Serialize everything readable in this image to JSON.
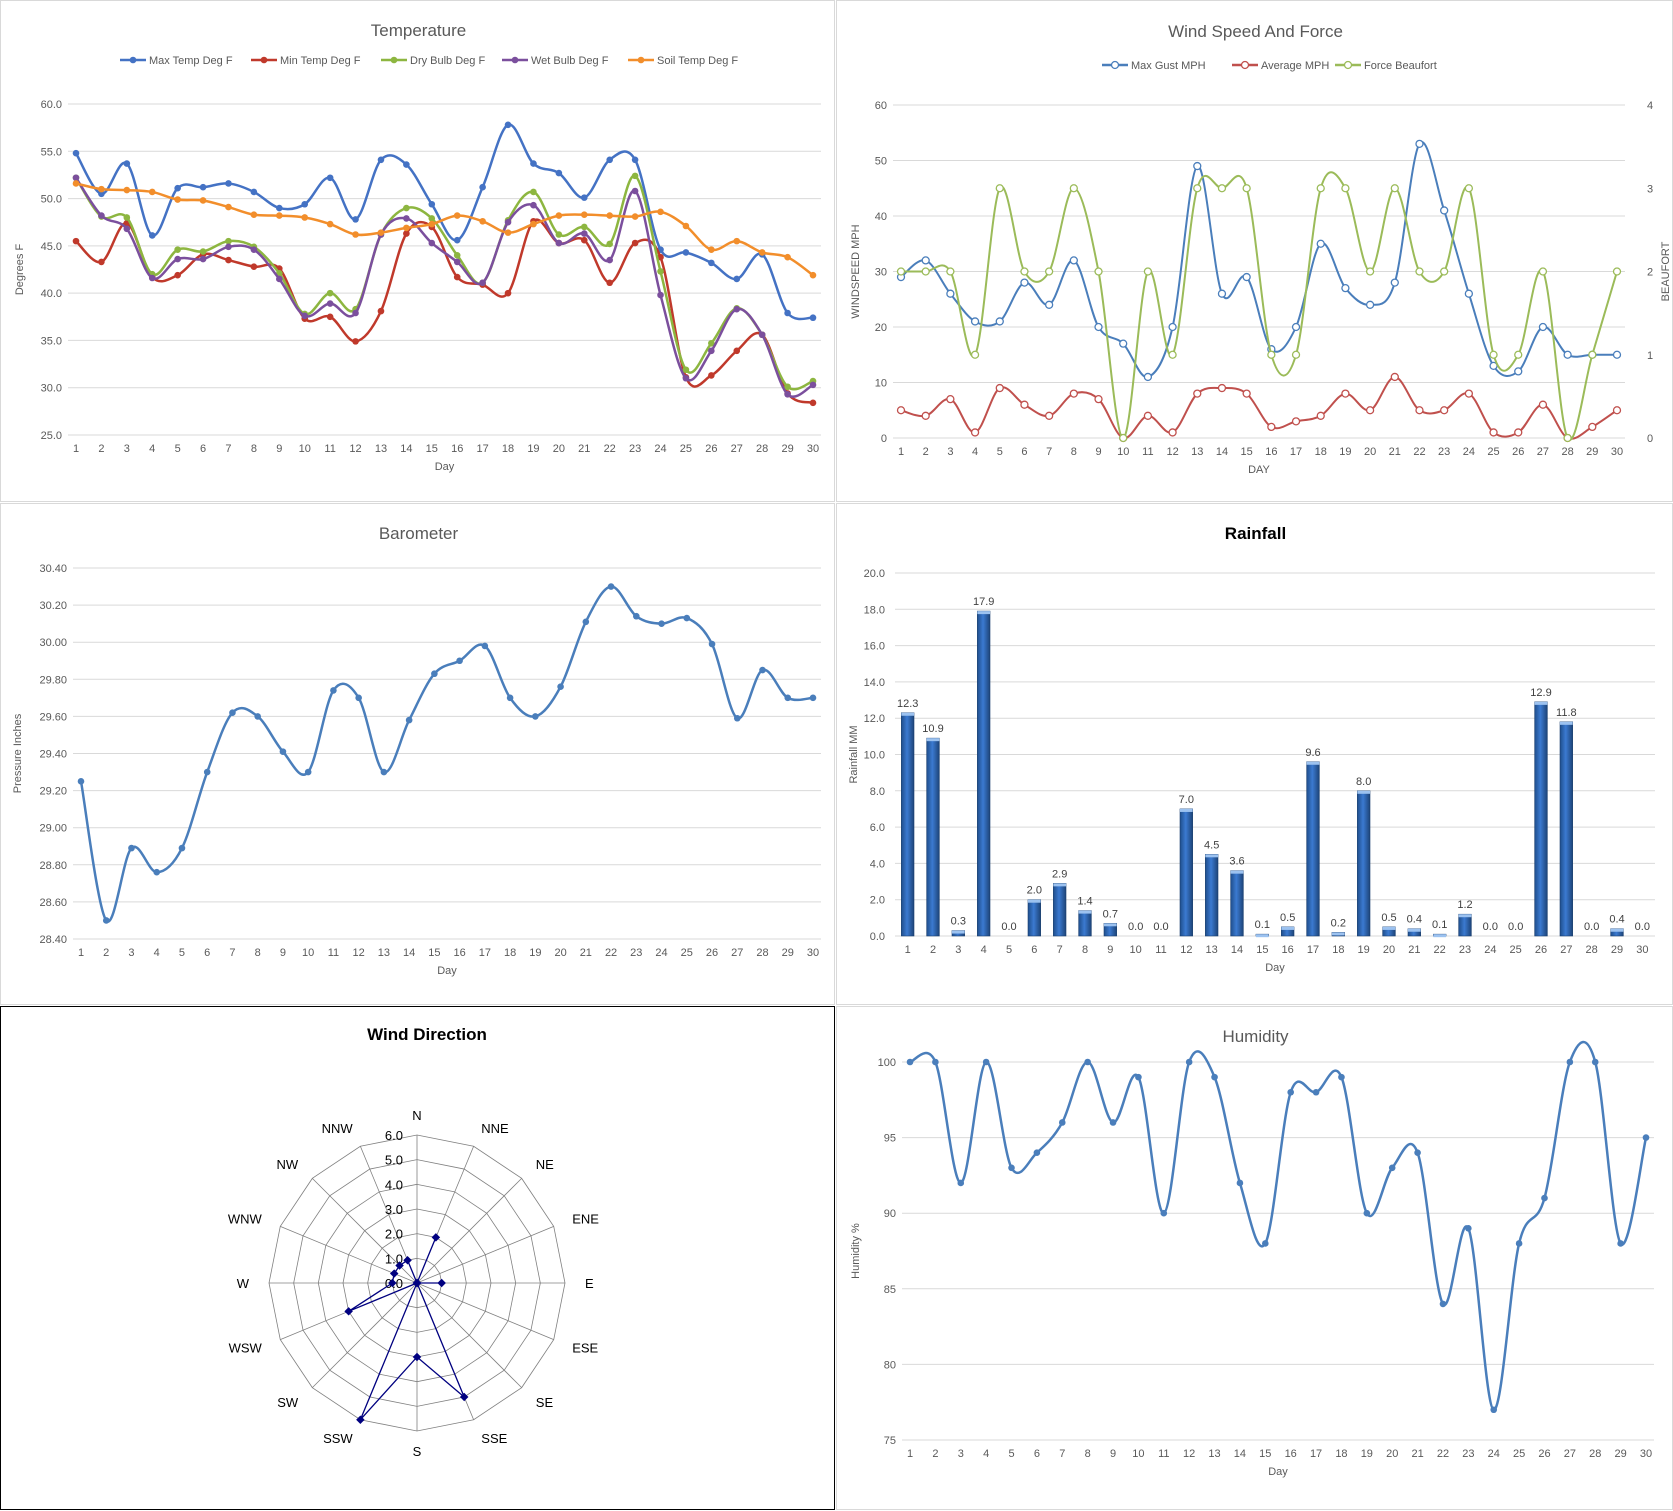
{
  "chart_data": [
    {
      "id": "temp",
      "type": "line",
      "title": "Temperature",
      "xlabel": "Day",
      "ylabel": "Degrees F",
      "x": [
        1,
        2,
        3,
        4,
        5,
        6,
        7,
        8,
        9,
        10,
        11,
        12,
        13,
        14,
        15,
        16,
        17,
        18,
        19,
        20,
        21,
        22,
        23,
        24,
        25,
        26,
        27,
        28,
        29,
        30
      ],
      "ylim": [
        25,
        60
      ],
      "yticks": [
        "25.0",
        "30.0",
        "35.0",
        "40.0",
        "45.0",
        "50.0",
        "55.0",
        "60.0"
      ],
      "ystep": 5,
      "series": [
        {
          "name": "Max Temp Deg F",
          "color": "#4472c4",
          "values": [
            54.8,
            50.5,
            53.7,
            46.1,
            51.1,
            51.2,
            51.6,
            50.7,
            49.0,
            49.4,
            52.2,
            47.8,
            54.1,
            53.6,
            49.4,
            45.6,
            51.2,
            57.8,
            53.7,
            52.7,
            50.1,
            54.1,
            54.1,
            44.6,
            44.3,
            43.2,
            41.5,
            44.1,
            37.9,
            37.4
          ]
        },
        {
          "name": "Min Temp Deg F",
          "color": "#c0392b",
          "values": [
            45.5,
            43.3,
            47.4,
            41.7,
            41.9,
            44.1,
            43.5,
            42.8,
            42.6,
            37.3,
            37.5,
            34.9,
            38.1,
            46.3,
            47.0,
            41.7,
            40.9,
            40.0,
            47.6,
            45.3,
            45.6,
            41.1,
            45.3,
            43.8,
            31.1,
            31.3,
            33.9,
            35.6,
            29.4,
            28.4
          ]
        },
        {
          "name": "Dry Bulb Deg F",
          "color": "#8db640",
          "values": [
            52.2,
            48.1,
            48.0,
            42.0,
            44.6,
            44.4,
            45.5,
            44.9,
            42.1,
            37.8,
            40.0,
            38.3,
            46.2,
            49.0,
            47.9,
            44.0,
            41.1,
            47.7,
            50.7,
            46.2,
            47.0,
            45.2,
            52.4,
            42.3,
            31.9,
            34.7,
            38.4,
            35.6,
            30.1,
            30.7
          ]
        },
        {
          "name": "Wet Bulb Deg F",
          "color": "#7b4f9d",
          "values": [
            52.2,
            48.2,
            46.8,
            41.6,
            43.6,
            43.6,
            44.9,
            44.6,
            41.5,
            37.6,
            38.9,
            37.9,
            46.2,
            47.9,
            45.3,
            43.3,
            41.1,
            47.5,
            49.3,
            45.3,
            46.3,
            43.5,
            50.8,
            39.8,
            31.0,
            33.9,
            38.3,
            35.6,
            29.3,
            30.3
          ]
        },
        {
          "name": "Soil Temp Deg F",
          "color": "#f28e2b",
          "values": [
            51.6,
            51.0,
            50.9,
            50.7,
            49.9,
            49.8,
            49.1,
            48.3,
            48.2,
            48.0,
            47.3,
            46.2,
            46.4,
            46.9,
            47.3,
            48.2,
            47.6,
            46.4,
            47.3,
            48.2,
            48.3,
            48.2,
            48.1,
            48.6,
            47.1,
            44.6,
            45.5,
            44.3,
            43.8,
            41.9
          ]
        }
      ]
    },
    {
      "id": "wind",
      "type": "line",
      "title": "Wind Speed And Force",
      "xlabel": "DAY",
      "ylabel": "WINDSPEED MPH",
      "ylabel_right": "BEAUFORT",
      "x": [
        1,
        2,
        3,
        4,
        5,
        6,
        7,
        8,
        9,
        10,
        11,
        12,
        13,
        14,
        15,
        16,
        17,
        18,
        19,
        20,
        21,
        22,
        23,
        24,
        25,
        26,
        27,
        28,
        29,
        30
      ],
      "ylim": [
        0,
        60
      ],
      "yticks": [
        "0",
        "10",
        "20",
        "30",
        "40",
        "50",
        "60"
      ],
      "ylim_right": [
        0,
        4
      ],
      "yticks_right": [
        "0",
        "1",
        "2",
        "3",
        "4"
      ],
      "series": [
        {
          "name": "Max Gust MPH",
          "color": "#4a7ebb",
          "axis": "left",
          "values": [
            29,
            32,
            26,
            21,
            21,
            28,
            24,
            32,
            20,
            17,
            11,
            20,
            49,
            26,
            29,
            16,
            20,
            35,
            27,
            24,
            28,
            53,
            41,
            26,
            13,
            12,
            20,
            15,
            15,
            15
          ]
        },
        {
          "name": "Average MPH",
          "color": "#c0504d",
          "axis": "left",
          "values": [
            5,
            4,
            7,
            1,
            9,
            6,
            4,
            8,
            7,
            0,
            4,
            1,
            8,
            9,
            8,
            2,
            3,
            4,
            8,
            5,
            11,
            5,
            5,
            8,
            1,
            1,
            6,
            0,
            2,
            5
          ]
        },
        {
          "name": "Force Beaufort",
          "color": "#9bbb59",
          "axis": "right",
          "values": [
            2,
            2,
            2,
            1,
            3,
            2,
            2,
            3,
            2,
            0,
            2,
            1,
            3,
            3,
            3,
            1,
            1,
            3,
            3,
            2,
            3,
            2,
            2,
            3,
            1,
            1,
            2,
            0,
            1,
            2
          ]
        }
      ]
    },
    {
      "id": "baro",
      "type": "line",
      "title": "Barometer",
      "xlabel": "Day",
      "ylabel": "Pressure Inches",
      "x": [
        1,
        2,
        3,
        4,
        5,
        6,
        7,
        8,
        9,
        10,
        11,
        12,
        13,
        14,
        15,
        16,
        17,
        18,
        19,
        20,
        21,
        22,
        23,
        24,
        25,
        26,
        27,
        28,
        29,
        30
      ],
      "ylim": [
        28.4,
        30.4
      ],
      "yticks": [
        "28.40",
        "28.60",
        "28.80",
        "29.00",
        "29.20",
        "29.40",
        "29.60",
        "29.80",
        "30.00",
        "30.20",
        "30.40"
      ],
      "series": [
        {
          "name": "",
          "color": "#4a7ebb",
          "values": [
            29.25,
            28.5,
            28.89,
            28.76,
            28.89,
            29.3,
            29.62,
            29.6,
            29.41,
            29.3,
            29.74,
            29.7,
            29.3,
            29.58,
            29.83,
            29.9,
            29.98,
            29.7,
            29.6,
            29.76,
            30.11,
            30.3,
            30.14,
            30.1,
            30.13,
            29.99,
            29.59,
            29.85,
            29.7,
            29.7
          ]
        }
      ]
    },
    {
      "id": "rain",
      "type": "bar",
      "title": "Rainfall",
      "xlabel": "Day",
      "ylabel": "Rainfall MM",
      "categories": [
        "1",
        "2",
        "3",
        "4",
        "5",
        "6",
        "7",
        "8",
        "9",
        "10",
        "11",
        "12",
        "13",
        "14",
        "15",
        "16",
        "17",
        "18",
        "19",
        "20",
        "21",
        "22",
        "23",
        "24",
        "25",
        "26",
        "27",
        "28",
        "29",
        "30"
      ],
      "values": [
        12.3,
        10.9,
        0.3,
        17.9,
        0.0,
        2.0,
        2.9,
        1.4,
        0.7,
        0.0,
        0.0,
        7.0,
        4.5,
        3.6,
        0.1,
        0.5,
        9.6,
        0.2,
        8.0,
        0.5,
        0.4,
        0.1,
        1.2,
        0.0,
        0.0,
        12.9,
        11.8,
        0.0,
        0.4,
        0.0
      ],
      "labels": [
        "12.3",
        "10.9",
        "0.3",
        "17.9",
        "0.0",
        "2.0",
        "2.9",
        "1.4",
        "0.7",
        "0.0",
        "0.0",
        "7.0",
        "4.5",
        "3.6",
        "0.1",
        "0.5",
        "9.6",
        "0.2",
        "8.0",
        "0.5",
        "0.4",
        "0.1",
        "1.2",
        "0.0",
        "0.0",
        "12.9",
        "11.8",
        "0.0",
        "0.4",
        "0.0"
      ],
      "ylim": [
        0,
        20
      ],
      "yticks": [
        "0.0",
        "2.0",
        "4.0",
        "6.0",
        "8.0",
        "10.0",
        "12.0",
        "14.0",
        "16.0",
        "18.0",
        "20.0"
      ],
      "color": "#2e6fc0"
    },
    {
      "id": "dir",
      "type": "radar",
      "title": "Wind Direction",
      "categories": [
        "N",
        "NNE",
        "NE",
        "ENE",
        "E",
        "ESE",
        "SE",
        "SSE",
        "S",
        "SSW",
        "SW",
        "WSW",
        "W",
        "WNW",
        "NW",
        "NNW"
      ],
      "values": [
        0,
        2.0,
        0,
        0,
        1.0,
        0,
        0,
        5.0,
        3.0,
        6.0,
        0,
        3.0,
        1.0,
        1.0,
        1.0,
        1.0
      ],
      "rlim": [
        0,
        6
      ],
      "rticks": [
        "0.0",
        "1.0",
        "2.0",
        "3.0",
        "4.0",
        "5.0",
        "6.0"
      ],
      "color": "#000080"
    },
    {
      "id": "hum",
      "type": "line",
      "title": "Humidity",
      "xlabel": "Day",
      "ylabel": "Humidity %",
      "x": [
        1,
        2,
        3,
        4,
        5,
        6,
        7,
        8,
        9,
        10,
        11,
        12,
        13,
        14,
        15,
        16,
        17,
        18,
        19,
        20,
        21,
        22,
        23,
        24,
        25,
        26,
        27,
        28,
        29,
        30
      ],
      "ylim": [
        75,
        100
      ],
      "yticks": [
        "75",
        "80",
        "85",
        "90",
        "95",
        "100"
      ],
      "series": [
        {
          "name": "",
          "color": "#4a7ebb",
          "values": [
            100,
            100,
            92,
            100,
            93,
            94,
            96,
            100,
            96,
            99,
            90,
            100,
            99,
            92,
            88,
            98,
            98,
            99,
            90,
            93,
            94,
            84,
            89,
            77,
            88,
            91,
            100,
            100,
            88,
            95
          ]
        }
      ]
    }
  ]
}
